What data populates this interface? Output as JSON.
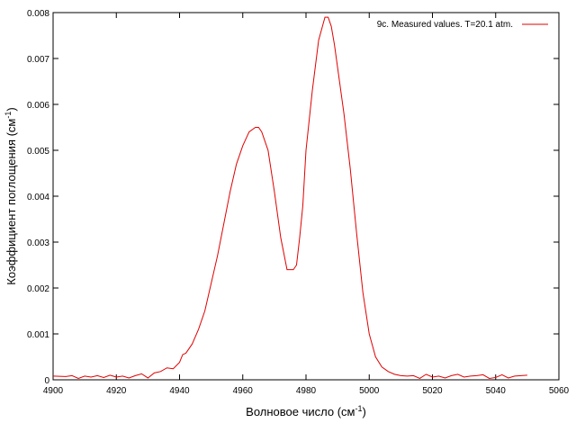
{
  "chart_data": {
    "type": "line",
    "title": "",
    "xlabel": "Волновое число (см",
    "xlabel_sup": "-1",
    "xlabel_end": ")",
    "ylabel": "Коэффициент поглощения (см",
    "ylabel_sup": "-1",
    "ylabel_end": ")",
    "xlim": [
      4900,
      5060
    ],
    "ylim": [
      0,
      0.008
    ],
    "x_ticks": [
      "4900",
      "4920",
      "4940",
      "4960",
      "4980",
      "5000",
      "5020",
      "5040",
      "5060"
    ],
    "y_ticks": [
      "0",
      "0.001",
      "0.002",
      "0.003",
      "0.004",
      "0.005",
      "0.006",
      "0.007",
      "0.008"
    ],
    "legend_position": "top-right",
    "colors": {
      "series": "#e00000",
      "axis": "#000000"
    },
    "series": [
      {
        "name": "9c. Measured values. T=20.1 atm.",
        "x": [
          4900,
          4904,
          4906,
          4908,
          4910,
          4912,
          4914,
          4916,
          4918,
          4920,
          4922,
          4924,
          4926,
          4928,
          4930,
          4932,
          4934,
          4936,
          4938,
          4940,
          4941,
          4942,
          4944,
          4946,
          4948,
          4950,
          4952,
          4954,
          4956,
          4958,
          4960,
          4962,
          4964,
          4965,
          4966,
          4967,
          4968,
          4970,
          4972,
          4974,
          4976,
          4977,
          4978,
          4979,
          4980,
          4982,
          4984,
          4986,
          4987,
          4988,
          4989,
          4990,
          4992,
          4994,
          4996,
          4998,
          5000,
          5002,
          5004,
          5006,
          5008,
          5010,
          5012,
          5014,
          5016,
          5018,
          5020,
          5022,
          5024,
          5026,
          5028,
          5030,
          5032,
          5034,
          5036,
          5038,
          5040,
          5042,
          5044,
          5046,
          5048,
          5050
        ],
        "y": [
          8e-05,
          7e-05,
          9e-05,
          3e-05,
          8e-05,
          6e-05,
          9e-05,
          5e-05,
          0.0001,
          6e-05,
          8e-05,
          4e-05,
          9e-05,
          0.00013,
          4e-05,
          0.00015,
          0.00018,
          0.00026,
          0.00024,
          0.00038,
          0.00055,
          0.00058,
          0.00078,
          0.0011,
          0.0015,
          0.0021,
          0.0027,
          0.0034,
          0.0041,
          0.0047,
          0.0051,
          0.0054,
          0.0055,
          0.0055,
          0.0054,
          0.0052,
          0.005,
          0.0041,
          0.0031,
          0.0024,
          0.0024,
          0.0025,
          0.0031,
          0.0038,
          0.005,
          0.0063,
          0.0074,
          0.0079,
          0.0079,
          0.0077,
          0.0073,
          0.0068,
          0.0058,
          0.0046,
          0.0032,
          0.0019,
          0.001,
          0.0005,
          0.00028,
          0.00018,
          0.00012,
          9e-05,
          8e-05,
          9e-05,
          3e-05,
          0.00012,
          6e-05,
          8e-05,
          4e-05,
          9e-05,
          0.00012,
          6e-05,
          8e-05,
          9e-05,
          0.00011,
          3e-05,
          5e-05,
          0.00011,
          4e-05,
          8e-05,
          9e-05,
          0.0001
        ]
      }
    ]
  }
}
